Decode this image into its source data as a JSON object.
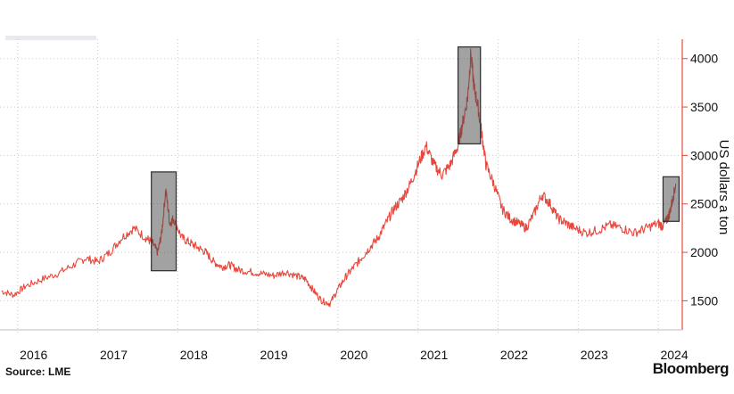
{
  "source_label": "Source: LME",
  "brand": "Bloomberg",
  "chart_data": {
    "type": "line",
    "title": "",
    "xlabel": "",
    "ylabel": "US dollars a ton",
    "ylim": [
      1200,
      4200
    ],
    "y_ticks": [
      1500,
      2000,
      2500,
      3000,
      3500,
      4000
    ],
    "x_ticks": [
      "2016",
      "2017",
      "2018",
      "2019",
      "2020",
      "2021",
      "2022",
      "2023",
      "2024"
    ],
    "x_tick_positions": [
      2016.0,
      2017.0,
      2018.0,
      2019.0,
      2020.0,
      2021.0,
      2022.0,
      2023.0,
      2024.0
    ],
    "xlim": [
      2015.78,
      2024.3
    ],
    "grid": true,
    "line_color": "#e8473c",
    "series": [
      {
        "name": "",
        "x": [
          2015.8,
          2015.95,
          2016.1,
          2016.3,
          2016.5,
          2016.7,
          2016.85,
          2017.0,
          2017.15,
          2017.3,
          2017.45,
          2017.6,
          2017.68,
          2017.75,
          2017.8,
          2017.85,
          2017.9,
          2017.95,
          2018.05,
          2018.15,
          2018.25,
          2018.35,
          2018.45,
          2018.55,
          2018.65,
          2018.75,
          2018.9,
          2019.05,
          2019.2,
          2019.35,
          2019.5,
          2019.6,
          2019.7,
          2019.8,
          2019.9,
          2020.0,
          2020.1,
          2020.2,
          2020.3,
          2020.4,
          2020.5,
          2020.6,
          2020.7,
          2020.8,
          2020.9,
          2021.0,
          2021.1,
          2021.2,
          2021.3,
          2021.4,
          2021.5,
          2021.55,
          2021.62,
          2021.66,
          2021.7,
          2021.75,
          2021.8,
          2021.85,
          2021.95,
          2022.05,
          2022.15,
          2022.25,
          2022.35,
          2022.45,
          2022.55,
          2022.65,
          2022.75,
          2022.85,
          2022.95,
          2023.1,
          2023.25,
          2023.4,
          2023.55,
          2023.7,
          2023.85,
          2024.0,
          2024.05,
          2024.1,
          2024.14,
          2024.18,
          2024.22
        ],
        "values": [
          1600,
          1560,
          1650,
          1720,
          1780,
          1870,
          1940,
          1900,
          2000,
          2150,
          2250,
          2150,
          2100,
          2000,
          2200,
          2650,
          2300,
          2350,
          2150,
          2100,
          2050,
          2000,
          1900,
          1850,
          1870,
          1820,
          1800,
          1780,
          1760,
          1800,
          1750,
          1720,
          1600,
          1500,
          1470,
          1620,
          1750,
          1850,
          1950,
          2050,
          2150,
          2300,
          2450,
          2550,
          2700,
          2900,
          3100,
          2900,
          2800,
          2900,
          3100,
          3300,
          3600,
          4050,
          3700,
          3500,
          3200,
          2900,
          2700,
          2450,
          2350,
          2300,
          2250,
          2400,
          2600,
          2500,
          2350,
          2300,
          2250,
          2200,
          2230,
          2280,
          2250,
          2200,
          2250,
          2300,
          2270,
          2320,
          2400,
          2550,
          2700
        ]
      }
    ],
    "highlight_boxes": [
      {
        "x_range": [
          2017.67,
          2017.98
        ],
        "y_range": [
          1810,
          2830
        ]
      },
      {
        "x_range": [
          2021.5,
          2021.78
        ],
        "y_range": [
          3120,
          4120
        ]
      },
      {
        "x_range": [
          2024.06,
          2024.26
        ],
        "y_range": [
          2320,
          2780
        ]
      }
    ]
  }
}
